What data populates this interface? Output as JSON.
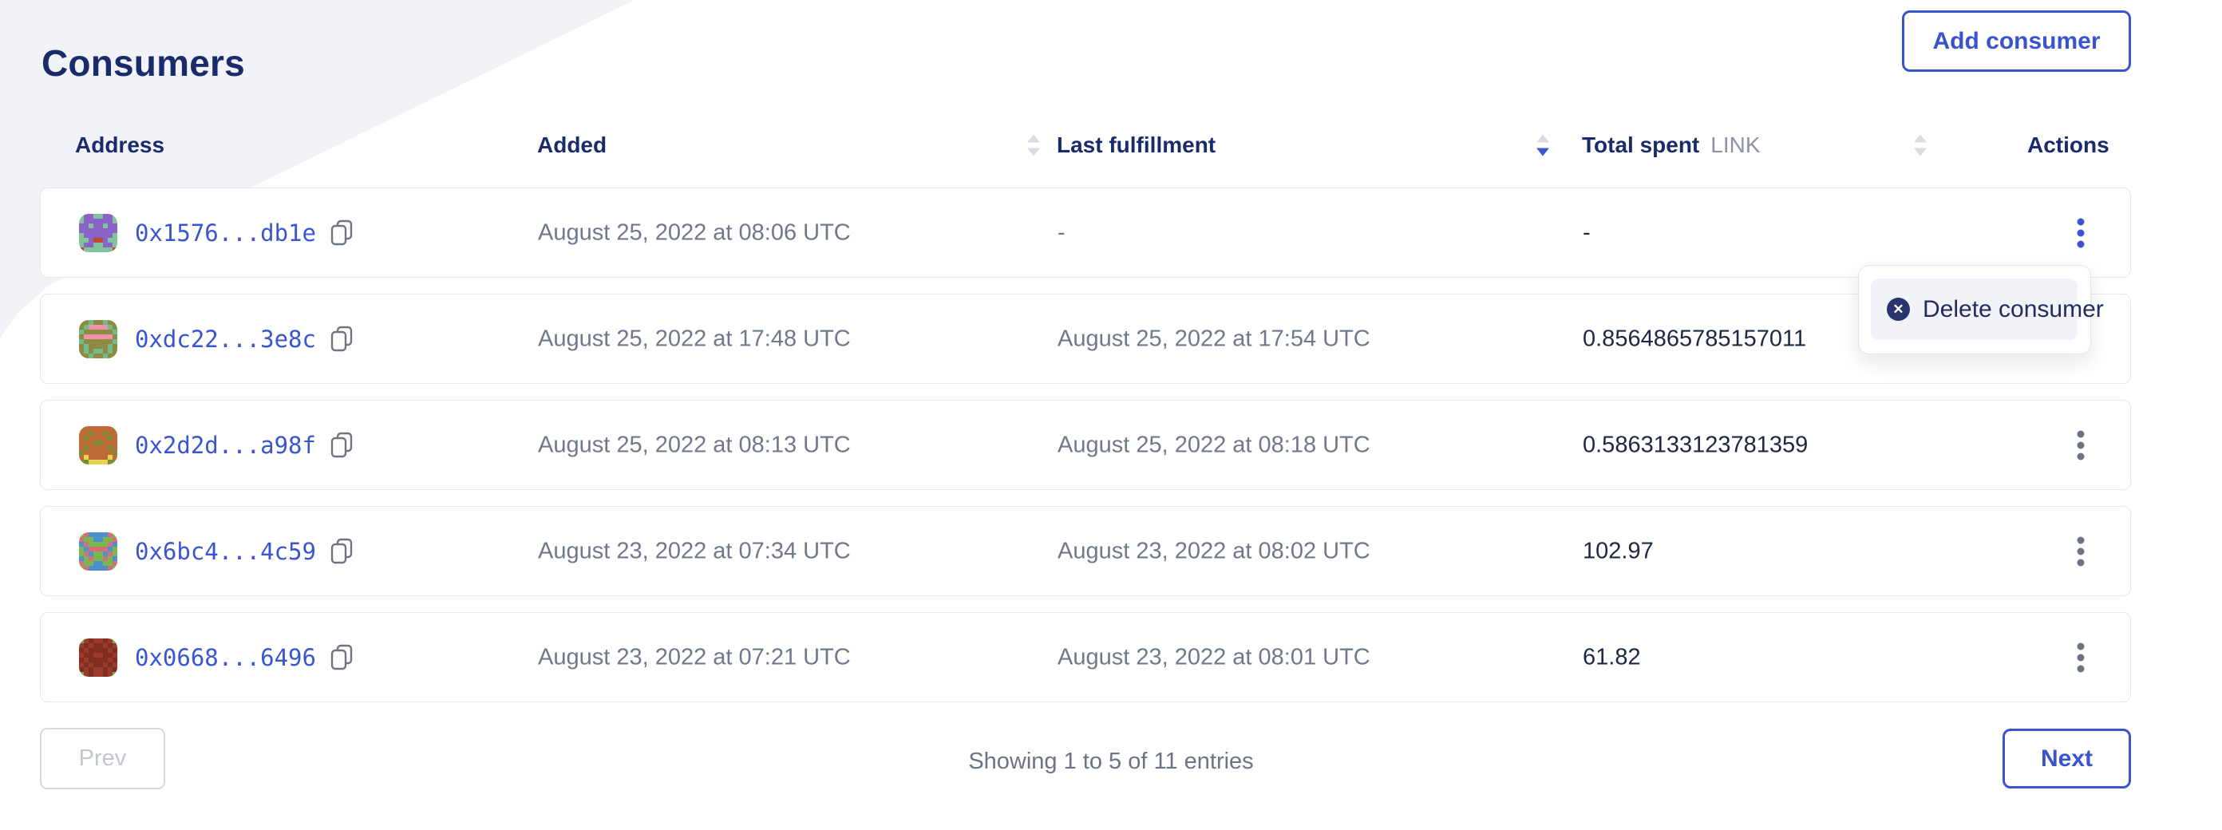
{
  "page": {
    "title": "Consumers"
  },
  "toolbar": {
    "add_button": "Add consumer"
  },
  "table": {
    "columns": {
      "address": "Address",
      "added": "Added",
      "last_fulfillment": "Last fulfillment",
      "total_spent": "Total spent",
      "total_spent_unit": "LINK",
      "actions": "Actions"
    },
    "sort": {
      "column": "last_fulfillment",
      "direction": "desc"
    },
    "rows": [
      {
        "address": "0x1576...db1e",
        "added": "August 25, 2022 at 08:06 UTC",
        "last_fulfillment": "-",
        "total_spent": "-",
        "kebab_active": true,
        "identicon": {
          "bg": "#7fc49a",
          "fg": "#8a63c9",
          "accent": "#c2472e",
          "pattern": [
            "01100110",
            "01111110",
            "11011011",
            "11111111",
            "01111110",
            "00122100",
            "01100110",
            "20000002"
          ]
        }
      },
      {
        "address": "0xdc22...3e8c",
        "added": "August 25, 2022 at 17:48 UTC",
        "last_fulfillment": "August 25, 2022 at 17:54 UTC",
        "total_spent": "0.8564865785157011",
        "kebab_active": false,
        "identicon": {
          "bg": "#6fbe87",
          "fg": "#8f8a42",
          "accent": "#ef93ac",
          "pattern": [
            "11011011",
            "10222201",
            "01111110",
            "12222221",
            "01111110",
            "10111101",
            "10100101",
            "11011011"
          ]
        }
      },
      {
        "address": "0x2d2d...a98f",
        "added": "August 25, 2022 at 08:13 UTC",
        "last_fulfillment": "August 25, 2022 at 08:18 UTC",
        "total_spent": "0.5863133123781359",
        "kebab_active": false,
        "identicon": {
          "bg": "#7b8d33",
          "fg": "#c06a38",
          "accent": "#e5d44e",
          "pattern": [
            "01111110",
            "11011011",
            "10111101",
            "11100111",
            "10111101",
            "01111110",
            "12111121",
            "00222200"
          ]
        }
      },
      {
        "address": "0x6bc4...4c59",
        "added": "August 23, 2022 at 07:34 UTC",
        "last_fulfillment": "August 23, 2022 at 08:02 UTC",
        "total_spent": "102.97",
        "kebab_active": false,
        "identicon": {
          "bg": "#4e8fd0",
          "fg": "#78b84e",
          "accent": "#d76f77",
          "pattern": [
            "12000021",
            "21100112",
            "02111120",
            "10222201",
            "12011021",
            "01211210",
            "21100112",
            "12000021"
          ]
        }
      },
      {
        "address": "0x0668...6496",
        "added": "August 23, 2022 at 07:21 UTC",
        "last_fulfillment": "August 23, 2022 at 08:01 UTC",
        "total_spent": "61.82",
        "kebab_active": false,
        "identicon": {
          "bg": "#9c3a2a",
          "fg": "#7e2d20",
          "accent": "#5fb54a",
          "pattern": [
            "20100102",
            "01011010",
            "10111101",
            "01100110",
            "10111101",
            "01011010",
            "10100101",
            "20100102"
          ]
        }
      }
    ]
  },
  "menu": {
    "delete_label": "Delete consumer"
  },
  "pagination": {
    "prev": "Prev",
    "next": "Next",
    "summary": "Showing 1 to 5 of 11 entries"
  },
  "colors": {
    "accent_blue": "#3a54cd",
    "heading_navy": "#1a2b6b",
    "muted_gray": "#70788c",
    "value_navy": "#1e2844",
    "kebab_active": "#3c56d0",
    "kebab_default": "#6c7384",
    "menu_icon_navy": "#28346d",
    "wedge_gray": "#f2f3f9"
  }
}
